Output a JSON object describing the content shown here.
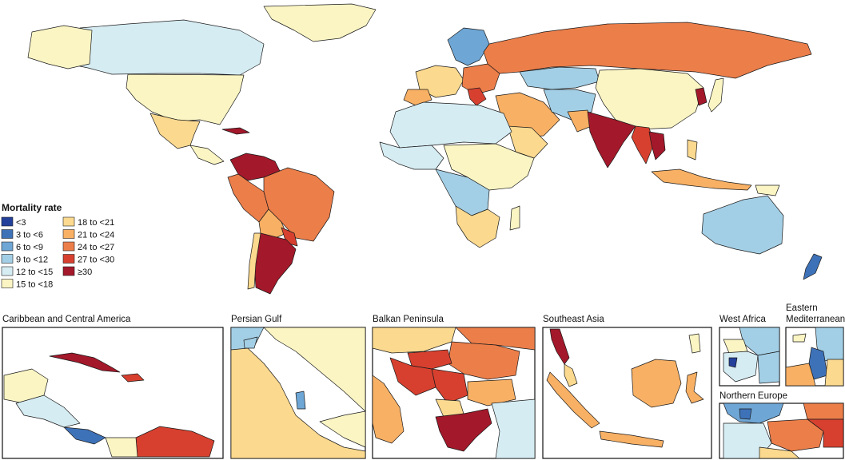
{
  "legend": {
    "title": "Mortality rate",
    "items": [
      {
        "label": "<3",
        "color": "#23409a"
      },
      {
        "label": "3 to <6",
        "color": "#3e72b8"
      },
      {
        "label": "6 to <9",
        "color": "#6ea6d5"
      },
      {
        "label": "9 to <12",
        "color": "#a3cfe6"
      },
      {
        "label": "12 to <15",
        "color": "#d6ecf3"
      },
      {
        "label": "15 to <18",
        "color": "#fbf5c4"
      },
      {
        "label": "18 to <21",
        "color": "#fbd98f"
      },
      {
        "label": "21 to <24",
        "color": "#f8b064"
      },
      {
        "label": "24 to <27",
        "color": "#ec7e4a"
      },
      {
        "label": "27 to <30",
        "color": "#d7402f"
      },
      {
        "label": "≥30",
        "color": "#a3182a"
      }
    ]
  },
  "insets": [
    {
      "title": "Caribbean and Central America"
    },
    {
      "title": "Persian Gulf"
    },
    {
      "title": "Balkan Peninsula"
    },
    {
      "title": "Southeast Asia"
    },
    {
      "title": "West Africa"
    },
    {
      "title": "Eastern"
    },
    {
      "title": "Mediterranean"
    },
    {
      "title": "Northern Europe"
    }
  ]
}
